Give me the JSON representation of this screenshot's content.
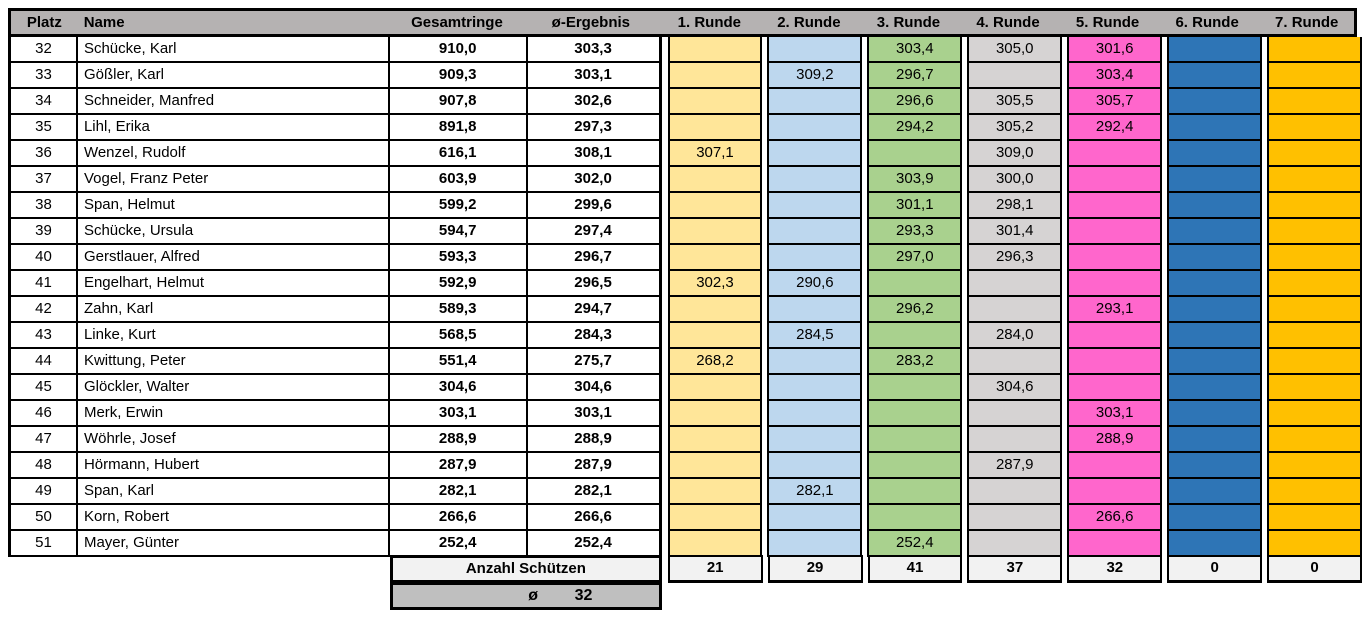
{
  "table": {
    "columns": [
      "Platz",
      "Name",
      "Gesamtringe",
      "ø-Ergebnis",
      "1. Runde",
      "2. Runde",
      "3. Runde",
      "4. Runde",
      "5. Runde",
      "6. Runde",
      "7. Runde"
    ],
    "rows": [
      {
        "platz": "32",
        "name": "Schücke, Karl",
        "gesamtringe": "910,0",
        "avg": "303,3",
        "runden": [
          "",
          "",
          "303,4",
          "305,0",
          "301,6",
          "",
          ""
        ]
      },
      {
        "platz": "33",
        "name": "Gößler, Karl",
        "gesamtringe": "909,3",
        "avg": "303,1",
        "runden": [
          "",
          "309,2",
          "296,7",
          "",
          "303,4",
          "",
          ""
        ]
      },
      {
        "platz": "34",
        "name": "Schneider, Manfred",
        "gesamtringe": "907,8",
        "avg": "302,6",
        "runden": [
          "",
          "",
          "296,6",
          "305,5",
          "305,7",
          "",
          ""
        ]
      },
      {
        "platz": "35",
        "name": "Lihl, Erika",
        "gesamtringe": "891,8",
        "avg": "297,3",
        "runden": [
          "",
          "",
          "294,2",
          "305,2",
          "292,4",
          "",
          ""
        ]
      },
      {
        "platz": "36",
        "name": "Wenzel, Rudolf",
        "gesamtringe": "616,1",
        "avg": "308,1",
        "runden": [
          "307,1",
          "",
          "",
          "309,0",
          "",
          "",
          ""
        ]
      },
      {
        "platz": "37",
        "name": "Vogel, Franz Peter",
        "gesamtringe": "603,9",
        "avg": "302,0",
        "runden": [
          "",
          "",
          "303,9",
          "300,0",
          "",
          "",
          ""
        ]
      },
      {
        "platz": "38",
        "name": "Span, Helmut",
        "gesamtringe": "599,2",
        "avg": "299,6",
        "runden": [
          "",
          "",
          "301,1",
          "298,1",
          "",
          "",
          ""
        ]
      },
      {
        "platz": "39",
        "name": "Schücke, Ursula",
        "gesamtringe": "594,7",
        "avg": "297,4",
        "runden": [
          "",
          "",
          "293,3",
          "301,4",
          "",
          "",
          ""
        ]
      },
      {
        "platz": "40",
        "name": "Gerstlauer, Alfred",
        "gesamtringe": "593,3",
        "avg": "296,7",
        "runden": [
          "",
          "",
          "297,0",
          "296,3",
          "",
          "",
          ""
        ]
      },
      {
        "platz": "41",
        "name": "Engelhart, Helmut",
        "gesamtringe": "592,9",
        "avg": "296,5",
        "runden": [
          "302,3",
          "290,6",
          "",
          "",
          "",
          "",
          ""
        ]
      },
      {
        "platz": "42",
        "name": "Zahn, Karl",
        "gesamtringe": "589,3",
        "avg": "294,7",
        "runden": [
          "",
          "",
          "296,2",
          "",
          "293,1",
          "",
          ""
        ]
      },
      {
        "platz": "43",
        "name": "Linke, Kurt",
        "gesamtringe": "568,5",
        "avg": "284,3",
        "runden": [
          "",
          "284,5",
          "",
          "284,0",
          "",
          "",
          ""
        ]
      },
      {
        "platz": "44",
        "name": "Kwittung, Peter",
        "gesamtringe": "551,4",
        "avg": "275,7",
        "runden": [
          "268,2",
          "",
          "283,2",
          "",
          "",
          "",
          ""
        ]
      },
      {
        "platz": "45",
        "name": "Glöckler, Walter",
        "gesamtringe": "304,6",
        "avg": "304,6",
        "runden": [
          "",
          "",
          "",
          "304,6",
          "",
          "",
          ""
        ]
      },
      {
        "platz": "46",
        "name": "Merk, Erwin",
        "gesamtringe": "303,1",
        "avg": "303,1",
        "runden": [
          "",
          "",
          "",
          "",
          "303,1",
          "",
          ""
        ]
      },
      {
        "platz": "47",
        "name": "Wöhrle, Josef",
        "gesamtringe": "288,9",
        "avg": "288,9",
        "runden": [
          "",
          "",
          "",
          "",
          "288,9",
          "",
          ""
        ]
      },
      {
        "platz": "48",
        "name": "Hörmann, Hubert",
        "gesamtringe": "287,9",
        "avg": "287,9",
        "runden": [
          "",
          "",
          "",
          "287,9",
          "",
          "",
          ""
        ]
      },
      {
        "platz": "49",
        "name": "Span, Karl",
        "gesamtringe": "282,1",
        "avg": "282,1",
        "runden": [
          "",
          "282,1",
          "",
          "",
          "",
          "",
          ""
        ]
      },
      {
        "platz": "50",
        "name": "Korn, Robert",
        "gesamtringe": "266,6",
        "avg": "266,6",
        "runden": [
          "",
          "",
          "",
          "",
          "266,6",
          "",
          ""
        ]
      },
      {
        "platz": "51",
        "name": "Mayer, Günter",
        "gesamtringe": "252,4",
        "avg": "252,4",
        "runden": [
          "",
          "",
          "252,4",
          "",
          "",
          "",
          ""
        ]
      }
    ],
    "footer": {
      "anzahl_label": "Anzahl Schützen",
      "counts": [
        "21",
        "29",
        "41",
        "37",
        "32",
        "0",
        "0"
      ],
      "avg_symbol": "ø",
      "avg_value": "32"
    },
    "colors": {
      "header_bg": "#B5B2B2",
      "runde_fills": [
        "#FFE699",
        "#BDD7EE",
        "#A9D18E",
        "#D6D3D3",
        "#FF66CC",
        "#2E75B6",
        "#FFC000"
      ],
      "footer_bg": "#F2F2F2",
      "avg_row_bg": "#BFBFBF",
      "border": "#000000"
    }
  }
}
